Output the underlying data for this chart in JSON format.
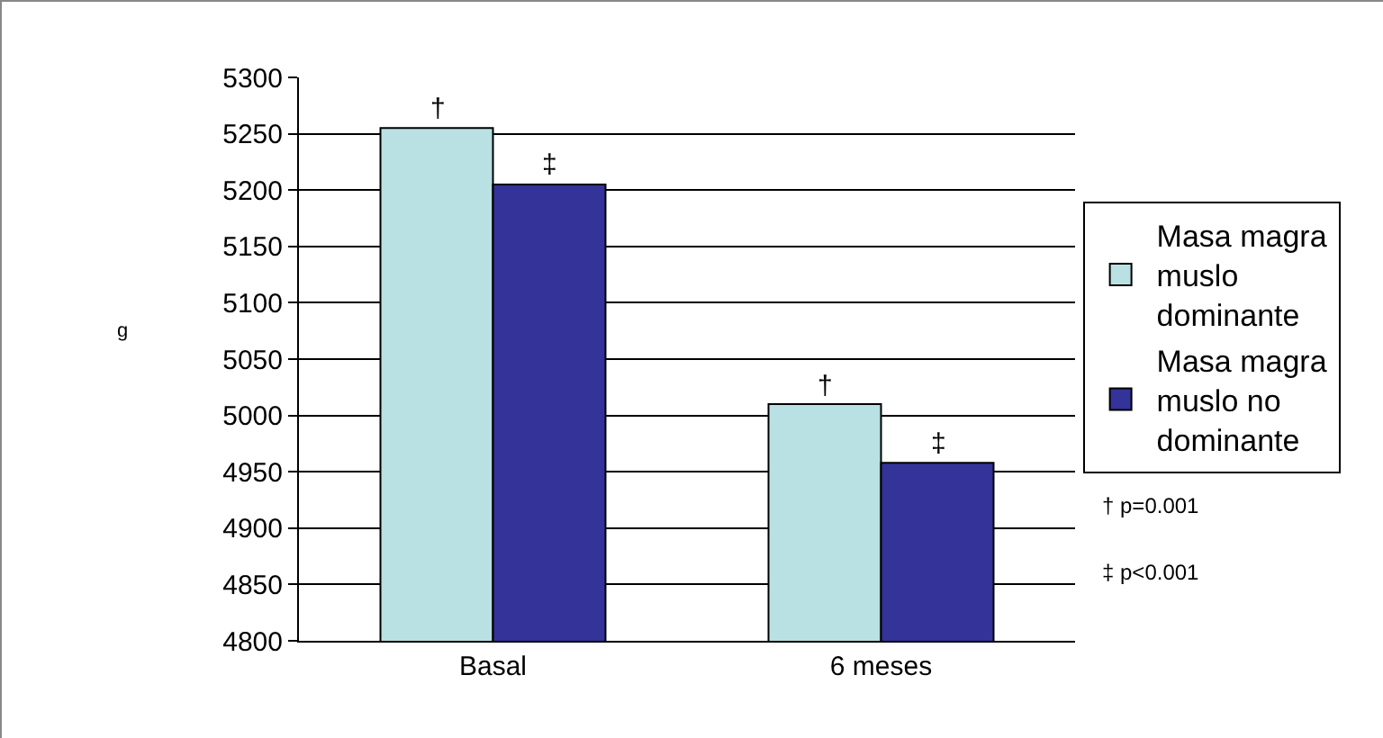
{
  "chart_data": {
    "type": "bar",
    "ylabel": "g",
    "categories": [
      "Basal",
      "6 meses"
    ],
    "series": [
      {
        "name": "Masa magra muslo dominante",
        "color": "#b9e0e2",
        "values": [
          5255,
          5010
        ]
      },
      {
        "name": "Masa magra muslo no dominante",
        "color": "#333399",
        "values": [
          5205,
          4958
        ]
      }
    ],
    "ylim": [
      4800,
      5300
    ],
    "yticks": [
      4800,
      4850,
      4900,
      4950,
      5000,
      5050,
      5100,
      5150,
      5200,
      5250,
      5300
    ],
    "grid": "y",
    "legend": "right",
    "annotations": [
      {
        "text": "†",
        "x": "Basal",
        "y": 5255
      },
      {
        "text": "‡",
        "x": "Basal",
        "y": 5205
      },
      {
        "text": "†",
        "x": "6 meses",
        "y": 5010
      },
      {
        "text": "‡",
        "x": "6 meses",
        "y": 4958
      },
      "† p=0.001",
      "‡ p<0.001"
    ]
  }
}
